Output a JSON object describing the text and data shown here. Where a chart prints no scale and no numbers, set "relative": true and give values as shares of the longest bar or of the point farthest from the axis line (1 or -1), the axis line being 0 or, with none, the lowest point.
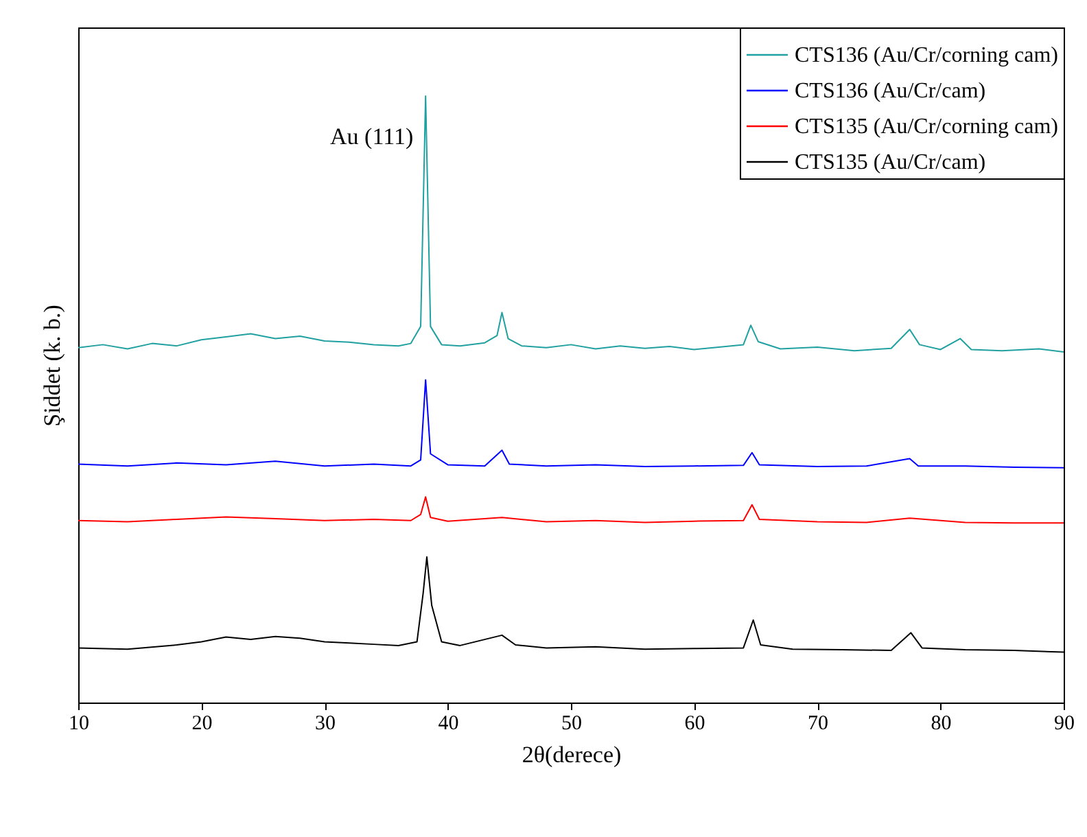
{
  "chart_data": {
    "type": "line",
    "relative": true,
    "xlabel": "2θ(derece)",
    "ylabel": "Şiddet (k. b.)",
    "xlim": [
      10,
      90
    ],
    "xticks": [
      10,
      20,
      30,
      40,
      50,
      60,
      70,
      80,
      90
    ],
    "grid": false,
    "legend": "top right",
    "annotations": [
      "Au (111)"
    ],
    "series": [
      {
        "name": "CTS136 (Au/Cr/corning cam)",
        "color": "#20a0a0",
        "x": [
          10,
          12,
          14,
          16,
          18,
          20,
          22,
          24,
          26,
          28,
          30,
          32,
          34,
          36,
          37,
          37.8,
          38.2,
          38.6,
          39.5,
          41,
          43,
          44,
          44.4,
          44.9,
          46,
          48,
          50,
          52,
          54,
          56,
          58,
          60,
          62,
          64,
          64.6,
          65.2,
          67,
          70,
          73,
          76,
          77.5,
          78.3,
          80,
          81.6,
          82.5,
          85,
          88,
          90
        ],
        "values": [
          0.585,
          0.59,
          0.583,
          0.592,
          0.588,
          0.598,
          0.603,
          0.608,
          0.6,
          0.604,
          0.596,
          0.594,
          0.59,
          0.588,
          0.592,
          0.62,
          1.0,
          0.62,
          0.59,
          0.588,
          0.593,
          0.605,
          0.643,
          0.6,
          0.588,
          0.585,
          0.59,
          0.583,
          0.588,
          0.584,
          0.587,
          0.582,
          0.586,
          0.59,
          0.622,
          0.595,
          0.583,
          0.586,
          0.58,
          0.584,
          0.615,
          0.59,
          0.582,
          0.6,
          0.582,
          0.58,
          0.583,
          0.578
        ]
      },
      {
        "name": "CTS136 (Au/Cr/cam)",
        "color": "#0000ff",
        "x": [
          10,
          14,
          18,
          22,
          26,
          30,
          34,
          37,
          37.8,
          38.2,
          38.6,
          40,
          43,
          44.4,
          45,
          48,
          52,
          56,
          60,
          64,
          64.7,
          65.3,
          70,
          74,
          77.5,
          78.2,
          82,
          86,
          90
        ],
        "values": [
          0.393,
          0.39,
          0.395,
          0.392,
          0.398,
          0.39,
          0.393,
          0.39,
          0.4,
          0.532,
          0.41,
          0.392,
          0.39,
          0.416,
          0.393,
          0.39,
          0.392,
          0.389,
          0.39,
          0.391,
          0.412,
          0.392,
          0.389,
          0.39,
          0.402,
          0.39,
          0.39,
          0.388,
          0.387
        ]
      },
      {
        "name": "CTS135 (Au/Cr/corning cam)",
        "color": "#ff0000",
        "x": [
          10,
          14,
          18,
          22,
          26,
          30,
          34,
          37,
          37.8,
          38.2,
          38.6,
          40,
          44.4,
          48,
          52,
          56,
          60,
          64,
          64.7,
          65.3,
          70,
          74,
          77.5,
          82,
          86,
          90
        ],
        "values": [
          0.3,
          0.298,
          0.302,
          0.306,
          0.303,
          0.3,
          0.302,
          0.3,
          0.31,
          0.339,
          0.305,
          0.299,
          0.305,
          0.298,
          0.3,
          0.297,
          0.299,
          0.3,
          0.326,
          0.302,
          0.298,
          0.297,
          0.304,
          0.297,
          0.296,
          0.296
        ]
      },
      {
        "name": "CTS135 (Au/Cr/cam)",
        "color": "#000000",
        "x": [
          10,
          14,
          18,
          20,
          22,
          24,
          26,
          28,
          30,
          32,
          34,
          36,
          37.5,
          38,
          38.3,
          38.7,
          39.5,
          41,
          44.4,
          45.5,
          48,
          52,
          56,
          60,
          64,
          64.8,
          65.4,
          68,
          72,
          76,
          77.6,
          78.5,
          82,
          86,
          90
        ],
        "values": [
          0.09,
          0.088,
          0.095,
          0.1,
          0.108,
          0.104,
          0.109,
          0.106,
          0.1,
          0.098,
          0.096,
          0.094,
          0.1,
          0.18,
          0.24,
          0.16,
          0.1,
          0.094,
          0.111,
          0.095,
          0.09,
          0.092,
          0.088,
          0.089,
          0.09,
          0.136,
          0.095,
          0.088,
          0.087,
          0.086,
          0.115,
          0.09,
          0.087,
          0.086,
          0.083
        ]
      }
    ]
  }
}
